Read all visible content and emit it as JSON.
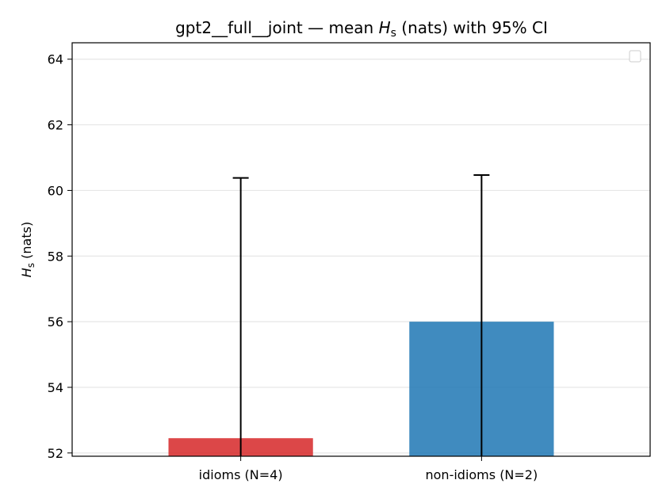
{
  "chart_data": {
    "type": "bar",
    "title": {
      "prefix": "gpt2__full__joint — mean ",
      "var": "H",
      "sub": "s",
      "suffix": " (nats) with 95% CI"
    },
    "ylabel": {
      "var": "H",
      "sub": "s",
      "suffix": " (nats)"
    },
    "xlabel": "",
    "categories": [
      "idioms (N=4)",
      "non-idioms (N=2)"
    ],
    "values": [
      52.45,
      56.0
    ],
    "ci": [
      [
        51.9,
        60.38
      ],
      [
        51.9,
        60.47
      ]
    ],
    "colors": [
      "#d62728",
      "#1f77b4"
    ],
    "ylim": [
      51.9,
      64.5
    ],
    "yticks": [
      52,
      54,
      56,
      58,
      60,
      62,
      64
    ],
    "grid": true,
    "legend": "top-right (empty)"
  }
}
